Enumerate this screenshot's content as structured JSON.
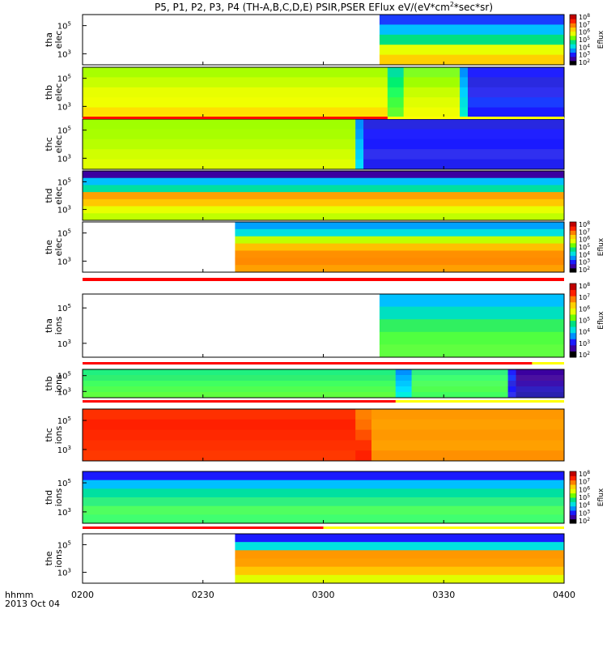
{
  "title": {
    "prefix": "P5, P1, P2, P3, P4 (TH-A,B,C,D,E) PSIR,PSER EFlux eV/(eV*cm",
    "sup": "2",
    "suffix": "*sec*sr)"
  },
  "x_axis": {
    "label_line1": "hhmm",
    "label_line2": "2013 Oct 04",
    "ticks": [
      "0200",
      "0230",
      "0300",
      "0330",
      "0400"
    ]
  },
  "colorbar": {
    "title": "Eflux",
    "tick_labels": [
      "10",
      "10",
      "10",
      "10",
      "10",
      "10",
      "10"
    ],
    "tick_exponents": [
      "8",
      "7",
      "6",
      "5",
      "4",
      "3",
      "2"
    ],
    "colors": [
      "#000000",
      "#3b00a0",
      "#1a1aff",
      "#0090ff",
      "#00e0e0",
      "#00e080",
      "#70ff00",
      "#e8ff00",
      "#ffd000",
      "#ff8000",
      "#ff2000",
      "#c00000"
    ]
  },
  "panels": [
    {
      "label1": "tha",
      "label2": "elec",
      "yticks": [
        "10",
        "10"
      ],
      "yexp": [
        "5",
        "3"
      ],
      "colorbar": true
    },
    {
      "label1": "thb",
      "label2": "elec",
      "yticks": [
        "10",
        "10"
      ],
      "yexp": [
        "5",
        "3"
      ],
      "colorbar": false
    },
    {
      "label1": "thc",
      "label2": "elec",
      "yticks": [
        "10",
        "10"
      ],
      "yexp": [
        "5",
        "3"
      ],
      "colorbar": false
    },
    {
      "label1": "thd",
      "label2": "elec",
      "yticks": [
        "10",
        "10"
      ],
      "yexp": [
        "5",
        "3"
      ],
      "colorbar": false
    },
    {
      "label1": "the",
      "label2": "elec",
      "yticks": [
        "10",
        "10"
      ],
      "yexp": [
        "5",
        "3"
      ],
      "colorbar": true
    },
    {
      "label1": "tha",
      "label2": "ions",
      "yticks": [
        "10",
        "10"
      ],
      "yexp": [
        "5",
        "3"
      ],
      "colorbar": true
    },
    {
      "label1": "thb",
      "label2": "ions",
      "yticks": [
        "10",
        "10"
      ],
      "yexp": [
        "5",
        "3"
      ],
      "colorbar": false
    },
    {
      "label1": "thc",
      "label2": "ions",
      "yticks": [
        "10",
        "10"
      ],
      "yexp": [
        "5",
        "3"
      ],
      "colorbar": false
    },
    {
      "label1": "thd",
      "label2": "ions",
      "yticks": [
        "10",
        "10"
      ],
      "yexp": [
        "5",
        "3"
      ],
      "colorbar": true
    },
    {
      "label1": "the",
      "label2": "ions",
      "yticks": [
        "10",
        "10"
      ],
      "yexp": [
        "5",
        "3"
      ],
      "colorbar": false
    }
  ],
  "chart_data": {
    "type": "heatmap",
    "x_ticks": [
      "0200",
      "0230",
      "0300",
      "0330",
      "0400"
    ],
    "y_scale": "log",
    "color_scale": "log",
    "color_ticks": [
      8,
      7,
      6,
      5,
      4,
      3,
      2
    ],
    "series": [
      {
        "probe": "tha",
        "species": "elec",
        "data_start": "0314",
        "columns": [
          {
            "from": "0314",
            "to": "0400",
            "bands": [
              "#1a3cff",
              "#00c0ff",
              "#00e080",
              "#e8ff00",
              "#ffd000"
            ]
          }
        ]
      },
      {
        "probe": "thb",
        "species": "elec",
        "data_start": "0200",
        "columns": [
          {
            "from": "0200",
            "to": "0316",
            "bands": [
              "#a8ff00",
              "#c8ff00",
              "#e8ff00",
              "#f0ff00",
              "#ffe000"
            ]
          },
          {
            "from": "0316",
            "to": "0320",
            "bands": [
              "#00e0a0",
              "#00f070",
              "#20ff60",
              "#40ff40",
              "#60ff30"
            ]
          },
          {
            "from": "0320",
            "to": "0334",
            "bands": [
              "#80ff20",
              "#a0ff00",
              "#c8ff00",
              "#e0ff00",
              "#f0ff00"
            ]
          },
          {
            "from": "0334",
            "to": "0336",
            "bands": [
              "#0090ff",
              "#00b0ff",
              "#00d0ff",
              "#00e0e0",
              "#00f0d0"
            ]
          },
          {
            "from": "0336",
            "to": "0400",
            "bands": [
              "#2020ff",
              "#2a2ae0",
              "#3030f0",
              "#1a3cff",
              "#1a1aff"
            ]
          }
        ]
      },
      {
        "probe": "thc",
        "species": "elec",
        "data_start": "0200",
        "columns": [
          {
            "from": "0200",
            "to": "0308",
            "bands": [
              "#a0ff00",
              "#a8ff00",
              "#b8ff00",
              "#d0ff00",
              "#e0ff00"
            ]
          },
          {
            "from": "0308",
            "to": "0310",
            "bands": [
              "#0090ff",
              "#00a0ff",
              "#00c0ff",
              "#00d0ff",
              "#00e0ff"
            ]
          },
          {
            "from": "0310",
            "to": "0400",
            "bands": [
              "#2828e0",
              "#2020ff",
              "#1a1aff",
              "#3030f0",
              "#2020f0"
            ]
          }
        ]
      },
      {
        "probe": "thd",
        "species": "elec",
        "data_start": "0200",
        "columns": [
          {
            "from": "0200",
            "to": "0400",
            "bands": [
              "#3b00a0",
              "#00c0ff",
              "#00e0a0",
              "#ffa000",
              "#ffc800",
              "#e8ff00",
              "#c0ff00"
            ]
          }
        ]
      },
      {
        "probe": "the",
        "species": "elec",
        "data_start": "0238",
        "columns": [
          {
            "from": "0238",
            "to": "0400",
            "bands": [
              "#00a0ff",
              "#00e0e0",
              "#c0ff00",
              "#ffc000",
              "#ff9000",
              "#ff8a00",
              "#ffa000"
            ]
          }
        ]
      },
      {
        "probe": "tha",
        "species": "ions",
        "data_start": "0314",
        "columns": [
          {
            "from": "0314",
            "to": "0400",
            "bands": [
              "#00c0ff",
              "#00e0c0",
              "#30f060",
              "#50ff40",
              "#60ff40"
            ]
          }
        ]
      },
      {
        "probe": "thb",
        "species": "ions",
        "data_start": "0200",
        "columns": [
          {
            "from": "0200",
            "to": "0318",
            "bands": [
              "#20f080",
              "#30f070",
              "#40ff60",
              "#50ff50",
              "#60ff40"
            ]
          },
          {
            "from": "0318",
            "to": "0322",
            "bands": [
              "#0090ff",
              "#00b0ff",
              "#00c8ff",
              "#00e0ff",
              "#00f0e0"
            ]
          },
          {
            "from": "0322",
            "to": "0346",
            "bands": [
              "#30f080",
              "#40ff70",
              "#50ff60",
              "#50ff50",
              "#40ff60"
            ]
          },
          {
            "from": "0346",
            "to": "0348",
            "bands": [
              "#2020ff",
              "#1a3cff",
              "#2a2ae0",
              "#1a1aff",
              "#3030f0"
            ]
          },
          {
            "from": "0348",
            "to": "0400",
            "bands": [
              "#3b00a0",
              "#4a10a0",
              "#3b10b0",
              "#3020c0",
              "#2a20b0"
            ]
          }
        ]
      },
      {
        "probe": "thc",
        "species": "ions",
        "data_start": "0200",
        "columns": [
          {
            "from": "0200",
            "to": "0308",
            "bands": [
              "#ff3000",
              "#ff2000",
              "#ff2800",
              "#ff3000",
              "#ff3800"
            ]
          },
          {
            "from": "0308",
            "to": "0312",
            "bands": [
              "#ff8000",
              "#ff7000",
              "#ff5000",
              "#ff3000",
              "#ff2000"
            ]
          },
          {
            "from": "0312",
            "to": "0400",
            "bands": [
              "#ff9800",
              "#ffa000",
              "#ff9800",
              "#ffa000",
              "#ff9000"
            ]
          }
        ]
      },
      {
        "probe": "thd",
        "species": "ions",
        "data_start": "0200",
        "columns": [
          {
            "from": "0200",
            "to": "0400",
            "bands": [
              "#1a1aff",
              "#00c0ff",
              "#00e0a0",
              "#30f080",
              "#50ff60",
              "#40ff70"
            ]
          }
        ]
      },
      {
        "probe": "the",
        "species": "ions",
        "data_start": "0238",
        "columns": [
          {
            "from": "0238",
            "to": "0400",
            "bands": [
              "#1a1aff",
              "#00e0e0",
              "#ff9800",
              "#ffa000",
              "#ffc800",
              "#e0ff00"
            ]
          }
        ]
      }
    ],
    "mode_bars": [
      {
        "after_panel": "thb-elec",
        "red_until": "0316"
      },
      {
        "after_panel": "the-elec",
        "red_until": "0400"
      },
      {
        "after_panel": "tha-ions",
        "red_until": "0352"
      },
      {
        "after_panel": "thb-ions",
        "red_until": "0318"
      },
      {
        "after_panel": "thd-ions",
        "red_until": "0300"
      }
    ]
  }
}
